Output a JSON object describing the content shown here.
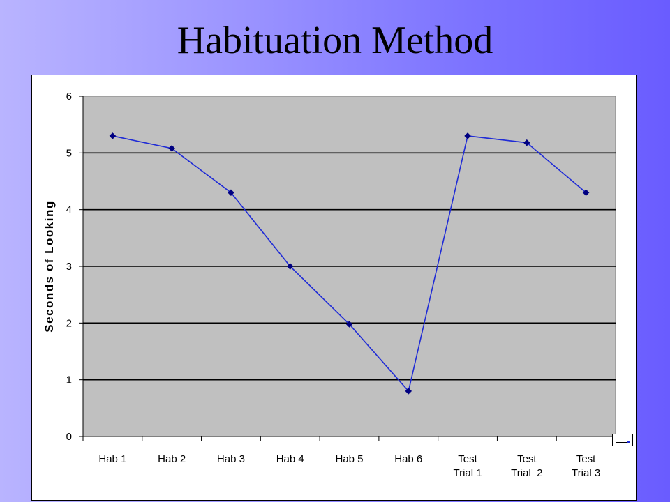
{
  "slide": {
    "title": "Habituation Method"
  },
  "colors": {
    "series": "#1f2bd6",
    "marker": "#000080",
    "plot_bg": "#c0c0c0",
    "frame_bg": "#ffffff",
    "gridline": "#000000"
  },
  "icons": {
    "legend": "line-series-icon"
  },
  "chart_data": {
    "type": "line",
    "title": "",
    "xlabel": "",
    "ylabel": "Seconds of Looking",
    "categories": [
      [
        "Hab 1"
      ],
      [
        "Hab 2"
      ],
      [
        "Hab 3"
      ],
      [
        "Hab 4"
      ],
      [
        "Hab 5"
      ],
      [
        "Hab 6"
      ],
      [
        "Test",
        "Trial 1"
      ],
      [
        "Test",
        "Trial  2"
      ],
      [
        "Test",
        "Trial 3"
      ]
    ],
    "values": [
      5.3,
      5.08,
      4.3,
      3.0,
      1.98,
      0.8,
      5.3,
      5.18,
      4.3
    ],
    "ylim": [
      0,
      6
    ],
    "yticks": [
      0,
      1,
      2,
      3,
      4,
      5,
      6
    ],
    "grid": true,
    "legend": "bottom-right"
  }
}
